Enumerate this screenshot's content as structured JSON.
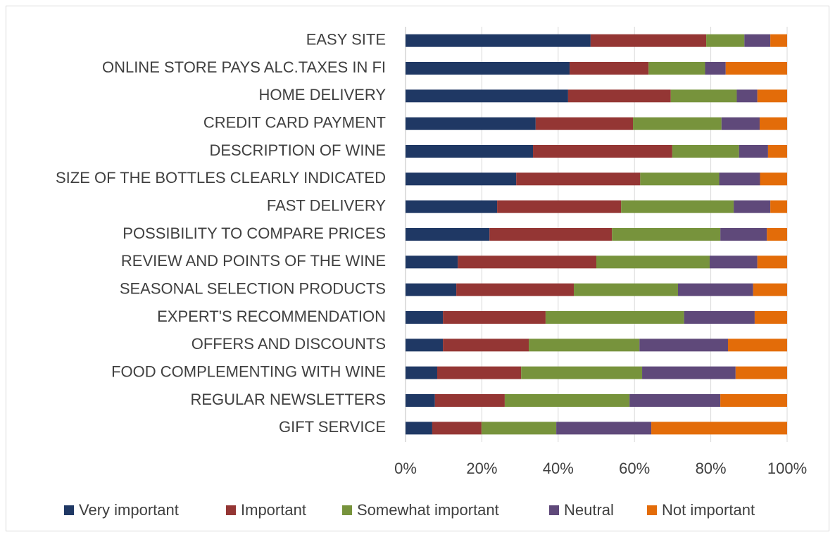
{
  "chart_data": {
    "type": "stacked_barh",
    "categories": [
      "EASY SITE",
      "ONLINE STORE PAYS ALC.TAXES IN FI",
      "HOME DELIVERY",
      "CREDIT CARD PAYMENT",
      "DESCRIPTION OF WINE",
      "SIZE OF THE BOTTLES CLEARLY INDICATED",
      "FAST DELIVERY",
      "POSSIBILITY TO COMPARE PRICES",
      "REVIEW AND POINTS OF THE WINE",
      "SEASONAL SELECTION PRODUCTS",
      "EXPERT'S RECOMMENDATION",
      "OFFERS AND DISCOUNTS",
      "FOOD COMPLEMENTING WITH WINE",
      "REGULAR NEWSLETTERS",
      "GIFT SERVICE"
    ],
    "series": [
      {
        "name": "Very important",
        "color": "#1f3864",
        "values": [
          48.5,
          43,
          42.6,
          34.1,
          33.4,
          29,
          24,
          22,
          13.7,
          13.3,
          9.8,
          9.8,
          8.3,
          7.7,
          7
        ]
      },
      {
        "name": "Important",
        "color": "#943634",
        "values": [
          30.3,
          20.7,
          26.9,
          25.5,
          36.5,
          32.5,
          32.5,
          32.1,
          36.3,
          30.8,
          26.9,
          22.5,
          22,
          18.3,
          12.9
        ]
      },
      {
        "name": "Somewhat important",
        "color": "#77933c",
        "values": [
          10,
          14.8,
          17.3,
          23.2,
          17.5,
          20.7,
          29.5,
          28.4,
          29.7,
          27.3,
          36.3,
          29,
          31.7,
          32.7,
          19.6
        ]
      },
      {
        "name": "Neutral",
        "color": "#5f497a",
        "values": [
          6.8,
          5.4,
          5.4,
          10,
          7.6,
          10.7,
          9.6,
          12.2,
          12.5,
          19.7,
          18.5,
          23.2,
          24.5,
          23.8,
          24.9
        ]
      },
      {
        "name": "Not important",
        "color": "#e36c09",
        "values": [
          4.4,
          16.1,
          7.8,
          7.2,
          5,
          7.1,
          4.4,
          5.3,
          7.8,
          8.9,
          8.5,
          15.5,
          13.5,
          17.5,
          35.6
        ]
      }
    ],
    "xlim": [
      0,
      100
    ],
    "xticks": [
      {
        "value": 0,
        "label": "0%"
      },
      {
        "value": 20,
        "label": "20%"
      },
      {
        "value": 40,
        "label": "40%"
      },
      {
        "value": 60,
        "label": "60%"
      },
      {
        "value": 80,
        "label": "80%"
      },
      {
        "value": 100,
        "label": "100%"
      }
    ],
    "grid": true,
    "legend": "bottom"
  }
}
